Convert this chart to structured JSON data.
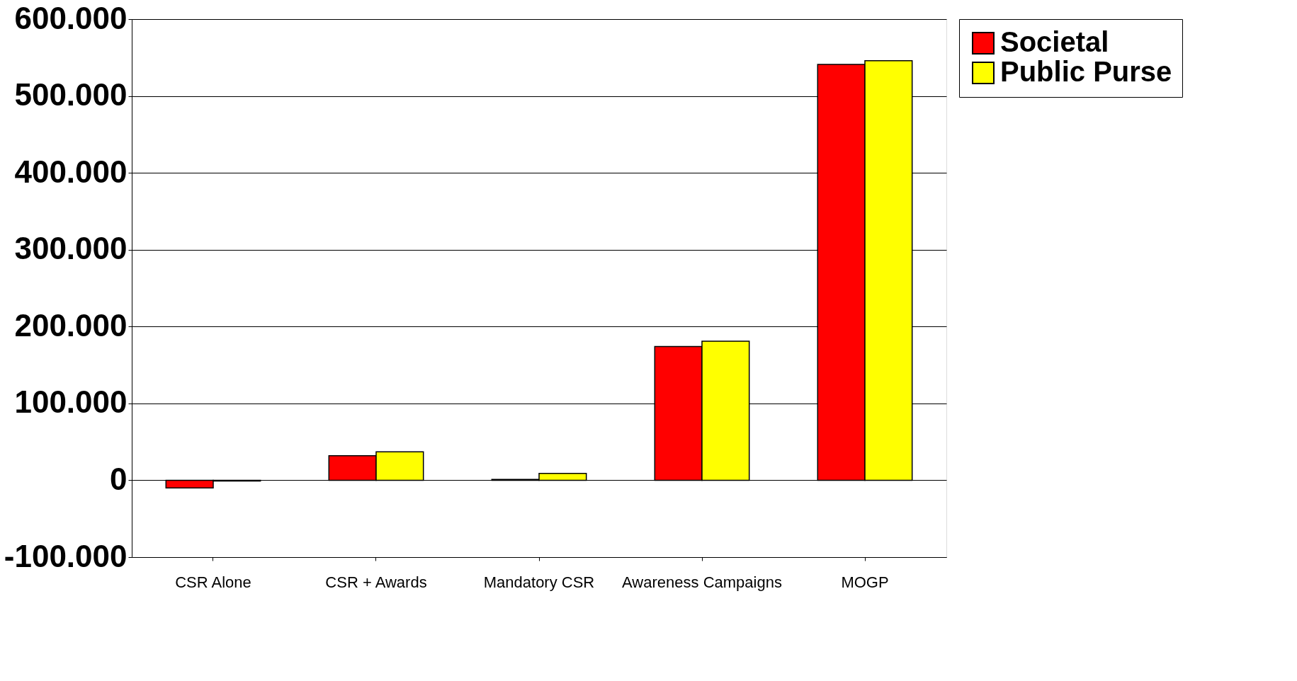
{
  "chart_data": {
    "type": "bar",
    "categories": [
      "CSR Alone",
      "CSR + Awards",
      "Mandatory CSR",
      "Awareness Campaigns",
      "MOGP"
    ],
    "series": [
      {
        "name": "Societal",
        "color": "#ff0000",
        "values": [
          -10000,
          32000,
          1000,
          174000,
          541000
        ]
      },
      {
        "name": "Public Purse",
        "color": "#ffff00",
        "values": [
          -1000,
          37000,
          9000,
          181000,
          546000
        ]
      }
    ],
    "ylim": [
      -100000,
      600000
    ],
    "yticks": [
      {
        "value": -100000,
        "label": "-100.000"
      },
      {
        "value": 0,
        "label": "0"
      },
      {
        "value": 100000,
        "label": "100.000"
      },
      {
        "value": 200000,
        "label": "200.000"
      },
      {
        "value": 300000,
        "label": "300.000"
      },
      {
        "value": 400000,
        "label": "400.000"
      },
      {
        "value": 500000,
        "label": "500.000"
      },
      {
        "value": 600000,
        "label": "600.000"
      }
    ],
    "grid": "y",
    "legend": "right"
  }
}
